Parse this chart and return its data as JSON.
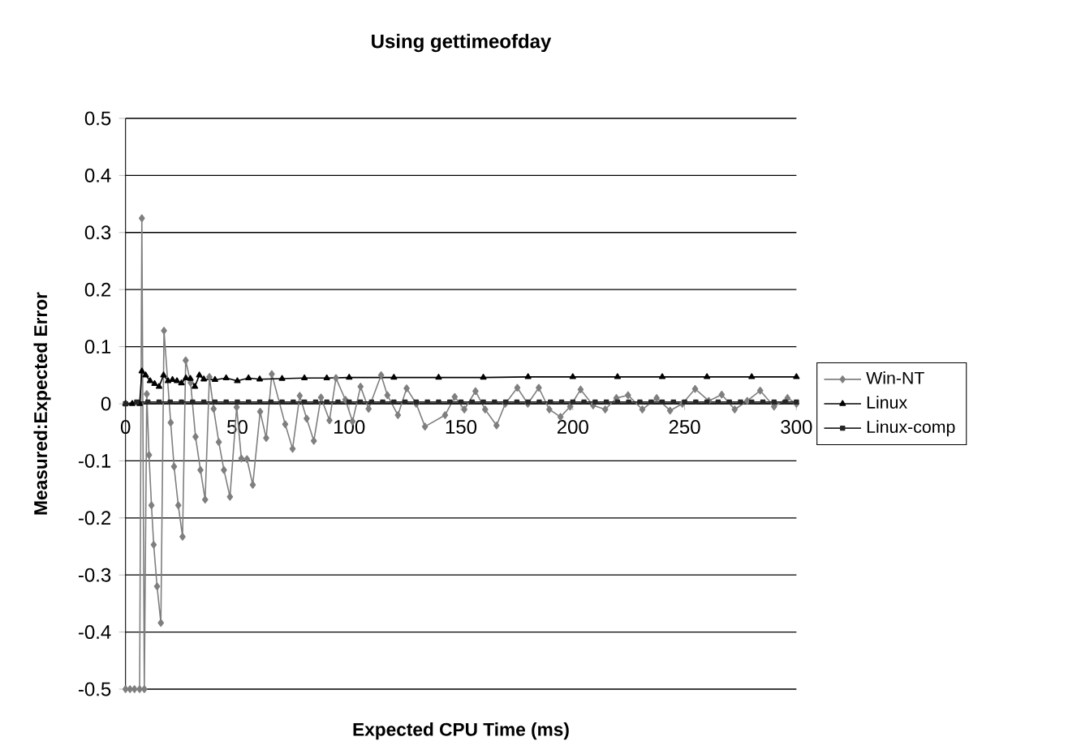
{
  "chart_data": {
    "type": "line",
    "title": "Using gettimeofday",
    "xlabel": "Expected CPU Time (ms)",
    "ylabel": "Measured:Expected Error",
    "xlim": [
      0,
      300
    ],
    "xticks": [
      0,
      50,
      100,
      150,
      200,
      250,
      300
    ],
    "ylim": [
      -0.5,
      0.5
    ],
    "yticks": [
      -0.5,
      -0.4,
      -0.3,
      -0.2,
      -0.1,
      0,
      0.1,
      0.2,
      0.3,
      0.4,
      0.5
    ],
    "grid": "y",
    "legend": "right",
    "series": [
      {
        "name": "Win-NT",
        "color": "#7f7f7f",
        "marker": "diamond",
        "x": [
          0,
          2,
          4,
          6.3,
          7.3,
          8.4,
          9.5,
          10.5,
          11.6,
          12.6,
          14.1,
          15.8,
          17.2,
          20.2,
          21.7,
          23.6,
          25.5,
          26.9,
          29.1,
          31.3,
          33.5,
          35.6,
          37.5,
          39.4,
          41.7,
          44,
          46.7,
          49.7,
          51.8,
          54.3,
          56.9,
          60.2,
          62.9,
          65.4,
          71.4,
          74.7,
          77.9,
          81,
          84.2,
          87.4,
          91.2,
          94.1,
          98.3,
          101.5,
          105.1,
          108.7,
          114.3,
          117.1,
          121.8,
          125.7,
          130,
          133.9,
          142.9,
          147.2,
          151.5,
          156.5,
          160.8,
          165.9,
          169.8,
          175.2,
          179.9,
          184.8,
          189.5,
          194.5,
          198.8,
          203.5,
          209.1,
          214.5,
          219.5,
          224.7,
          231.1,
          237.5,
          243.5,
          249,
          254.7,
          260.8,
          266.6,
          272.4,
          278,
          283.8,
          290,
          296,
          300
        ],
        "values": [
          -0.5,
          -0.5,
          -0.5,
          -0.5,
          0.325,
          -0.5,
          0.017,
          -0.09,
          -0.178,
          -0.247,
          -0.32,
          -0.384,
          0.128,
          -0.033,
          -0.11,
          -0.178,
          -0.233,
          0.076,
          0.037,
          -0.058,
          -0.116,
          -0.168,
          0.047,
          -0.009,
          -0.067,
          -0.116,
          -0.163,
          -0.006,
          -0.096,
          -0.097,
          -0.142,
          -0.014,
          -0.06,
          0.052,
          -0.036,
          -0.079,
          0.014,
          -0.026,
          -0.065,
          0.011,
          -0.029,
          0.045,
          0.007,
          -0.031,
          0.03,
          -0.009,
          0.05,
          0.015,
          -0.02,
          0.027,
          0,
          -0.04,
          -0.02,
          0.012,
          -0.01,
          0.022,
          -0.01,
          -0.038,
          0,
          0.028,
          0,
          0.028,
          -0.01,
          -0.023,
          -0.005,
          0.025,
          -0.003,
          -0.01,
          0.01,
          0.015,
          -0.01,
          0.01,
          -0.012,
          0,
          0.026,
          0.005,
          0.016,
          -0.01,
          0.005,
          0.023,
          -0.005,
          0.01,
          0
        ]
      },
      {
        "name": "Linux",
        "color": "#000000",
        "marker": "triangle",
        "x": [
          0,
          3,
          6.3,
          7.3,
          9,
          11,
          13,
          15,
          17,
          19,
          21,
          23,
          25,
          27,
          29,
          31,
          33,
          35,
          40,
          45,
          50,
          55,
          60,
          70,
          80,
          90,
          100,
          120,
          140,
          160,
          180,
          200,
          220,
          240,
          260,
          280,
          300
        ],
        "values": [
          0,
          0,
          0,
          0.057,
          0.05,
          0.04,
          0.035,
          0.03,
          0.05,
          0.04,
          0.042,
          0.04,
          0.036,
          0.045,
          0.044,
          0.03,
          0.05,
          0.043,
          0.042,
          0.045,
          0.04,
          0.045,
          0.043,
          0.044,
          0.045,
          0.045,
          0.046,
          0.046,
          0.046,
          0.046,
          0.047,
          0.047,
          0.047,
          0.047,
          0.047,
          0.047,
          0.047
        ]
      },
      {
        "name": "Linux-comp",
        "color": "#262626",
        "marker": "square",
        "x": [
          0,
          5,
          10,
          15,
          20,
          25,
          30,
          35,
          40,
          45,
          50,
          55,
          60,
          65,
          70,
          75,
          80,
          85,
          90,
          95,
          100,
          105,
          110,
          115,
          120,
          125,
          130,
          135,
          140,
          145,
          150,
          155,
          160,
          165,
          170,
          175,
          180,
          185,
          190,
          195,
          200,
          205,
          210,
          215,
          220,
          225,
          230,
          235,
          240,
          245,
          250,
          255,
          260,
          265,
          270,
          275,
          280,
          285,
          290,
          295,
          300
        ],
        "values": [
          0,
          0.003,
          0.003,
          0.003,
          0.003,
          0.003,
          0.003,
          0.003,
          0.003,
          0.003,
          0.003,
          0.003,
          0.003,
          0.003,
          0.003,
          0.003,
          0.003,
          0.003,
          0.003,
          0.003,
          0.003,
          0.003,
          0.003,
          0.003,
          0.003,
          0.003,
          0.003,
          0.003,
          0.003,
          0.003,
          0.003,
          0.003,
          0.003,
          0.003,
          0.003,
          0.003,
          0.003,
          0.003,
          0.003,
          0.003,
          0.003,
          0.003,
          0.003,
          0.003,
          0.003,
          0.003,
          0.003,
          0.003,
          0.003,
          0.003,
          0.003,
          0.003,
          0.003,
          0.003,
          0.003,
          0.003,
          0.003,
          0.003,
          0.003,
          0.003,
          0.003
        ]
      }
    ]
  }
}
